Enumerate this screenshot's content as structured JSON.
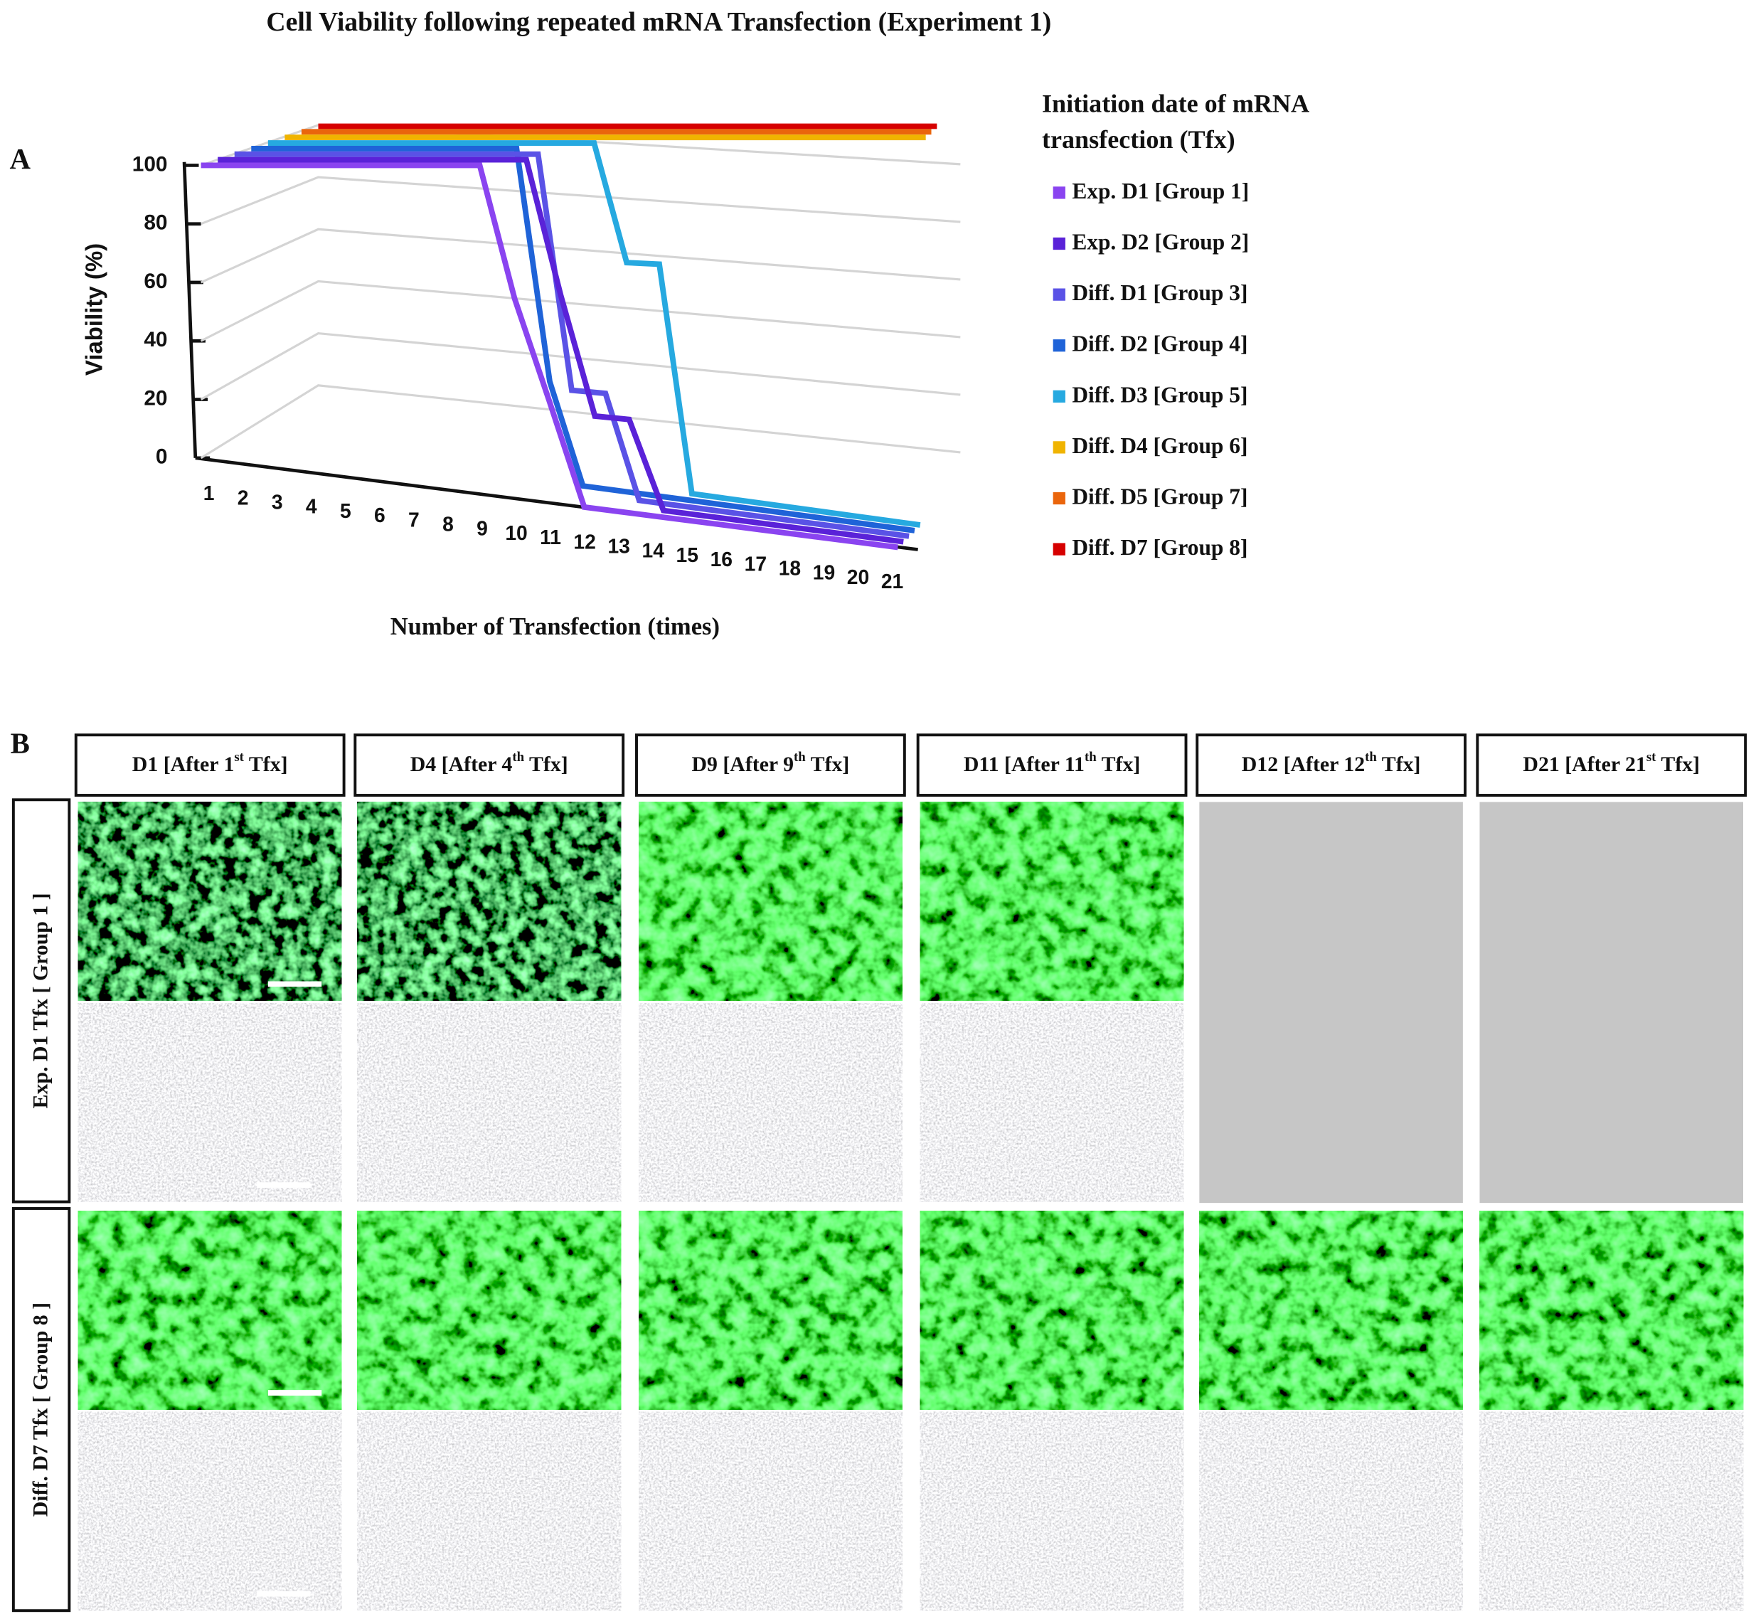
{
  "chart_data": {
    "type": "line",
    "title": "Cell Viability following repeated mRNA Transfection (Experiment 1)",
    "panel_label": "A",
    "y_label": "Viability (%)",
    "x_label": "Number of Transfection (times)",
    "legend_title": [
      "Initiation  date of mRNA",
      "transfection (Tfx)"
    ],
    "x": [
      1,
      2,
      3,
      4,
      5,
      6,
      7,
      8,
      9,
      10,
      11,
      12,
      13,
      14,
      15,
      16,
      17,
      18,
      19,
      20,
      21
    ],
    "ylim": [
      0,
      100
    ],
    "yticks": [
      0,
      20,
      40,
      60,
      80,
      100
    ],
    "grid": true,
    "series": [
      {
        "name": "Exp. D1 [Group 1]",
        "color": "#8a44f0",
        "values": [
          100,
          100,
          100,
          100,
          100,
          100,
          100,
          100,
          100,
          60,
          30,
          0,
          0,
          0,
          0,
          0,
          0,
          0,
          0,
          0,
          0
        ]
      },
      {
        "name": "Exp. D2 [Group 2]",
        "color": "#5a22d8",
        "values": [
          100,
          100,
          100,
          100,
          100,
          100,
          100,
          100,
          100,
          100,
          60,
          25,
          25,
          0,
          0,
          0,
          0,
          0,
          0,
          0,
          0
        ]
      },
      {
        "name": "Diff. D1 [Group 3]",
        "color": "#5a52e6",
        "values": [
          100,
          100,
          100,
          100,
          100,
          100,
          100,
          100,
          100,
          100,
          30,
          30,
          0,
          0,
          0,
          0,
          0,
          0,
          0,
          0,
          0
        ]
      },
      {
        "name": "Diff. D2 [Group 4]",
        "color": "#1f63d8",
        "values": [
          100,
          100,
          100,
          100,
          100,
          100,
          100,
          100,
          100,
          30,
          0,
          0,
          0,
          0,
          0,
          0,
          0,
          0,
          0,
          0,
          0
        ]
      },
      {
        "name": "Diff. D3 [Group 5]",
        "color": "#26a9e0",
        "values": [
          100,
          100,
          100,
          100,
          100,
          100,
          100,
          100,
          100,
          100,
          100,
          65,
          65,
          0,
          0,
          0,
          0,
          0,
          0,
          0,
          0
        ]
      },
      {
        "name": "Diff. D4 [Group 6]",
        "color": "#f0b400",
        "values": [
          100,
          100,
          100,
          100,
          100,
          100,
          100,
          100,
          100,
          100,
          100,
          100,
          100,
          100,
          100,
          100,
          100,
          100,
          100,
          100,
          100
        ]
      },
      {
        "name": "Diff. D5 [Group 7]",
        "color": "#ea650c",
        "values": [
          100,
          100,
          100,
          100,
          100,
          100,
          100,
          100,
          100,
          100,
          100,
          100,
          100,
          100,
          100,
          100,
          100,
          100,
          100,
          100,
          100
        ]
      },
      {
        "name": "Diff. D7 [Group 8]",
        "color": "#d60000",
        "values": [
          100,
          100,
          100,
          100,
          100,
          100,
          100,
          100,
          100,
          100,
          100,
          100,
          100,
          100,
          100,
          100,
          100,
          100,
          100,
          100,
          100
        ]
      }
    ]
  },
  "panel_b": {
    "panel_label": "B",
    "columns": [
      {
        "text": "D1 [After 1",
        "sup": "st",
        "tail": " Tfx]"
      },
      {
        "text": "D4 [After 4",
        "sup": "th",
        "tail": " Tfx]"
      },
      {
        "text": "D9 [After 9",
        "sup": "th",
        "tail": " Tfx]"
      },
      {
        "text": "D11 [After 11",
        "sup": "th",
        "tail": " Tfx]"
      },
      {
        "text": "D12 [After 12",
        "sup": "th",
        "tail": " Tfx]"
      },
      {
        "text": "D21 [After 21",
        "sup": "st",
        "tail": " Tfx]"
      }
    ],
    "rows": [
      "Exp. D1 Tfx [ Group 1 ]",
      "Diff. D7 Tfx [ Group 8 ]"
    ]
  }
}
